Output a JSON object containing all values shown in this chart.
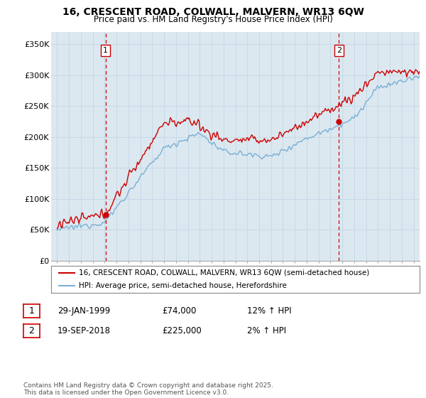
{
  "title_line1": "16, CRESCENT ROAD, COLWALL, MALVERN, WR13 6QW",
  "title_line2": "Price paid vs. HM Land Registry's House Price Index (HPI)",
  "ylabel_ticks": [
    "£0",
    "£50K",
    "£100K",
    "£150K",
    "£200K",
    "£250K",
    "£300K",
    "£350K"
  ],
  "ytick_values": [
    0,
    50000,
    100000,
    150000,
    200000,
    250000,
    300000,
    350000
  ],
  "ylim": [
    0,
    370000
  ],
  "xlim_start": 1994.5,
  "xlim_end": 2025.5,
  "xtick_years": [
    1995,
    1996,
    1997,
    1998,
    1999,
    2000,
    2001,
    2002,
    2003,
    2004,
    2005,
    2006,
    2007,
    2008,
    2009,
    2010,
    2011,
    2012,
    2013,
    2014,
    2015,
    2016,
    2017,
    2018,
    2019,
    2020,
    2021,
    2022,
    2023,
    2024,
    2025
  ],
  "sale1_x": 1999.08,
  "sale1_y": 74000,
  "sale1_label": "1",
  "sale1_date": "29-JAN-1999",
  "sale1_price": "£74,000",
  "sale1_hpi": "12% ↑ HPI",
  "sale2_x": 2018.72,
  "sale2_y": 225000,
  "sale2_label": "2",
  "sale2_date": "19-SEP-2018",
  "sale2_price": "£225,000",
  "sale2_hpi": "2% ↑ HPI",
  "line1_color": "#cc0000",
  "line2_color": "#7ab0d4",
  "marker_color": "#cc0000",
  "vline_color": "#cc0000",
  "grid_color": "#c8d8e8",
  "plot_bg_color": "#dce8f0",
  "bg_color": "#ffffff",
  "legend1_label": "16, CRESCENT ROAD, COLWALL, MALVERN, WR13 6QW (semi-detached house)",
  "legend2_label": "HPI: Average price, semi-detached house, Herefordshire",
  "footer_text": "Contains HM Land Registry data © Crown copyright and database right 2025.\nThis data is licensed under the Open Government Licence v3.0.",
  "box1_label": "1",
  "box2_label": "2"
}
